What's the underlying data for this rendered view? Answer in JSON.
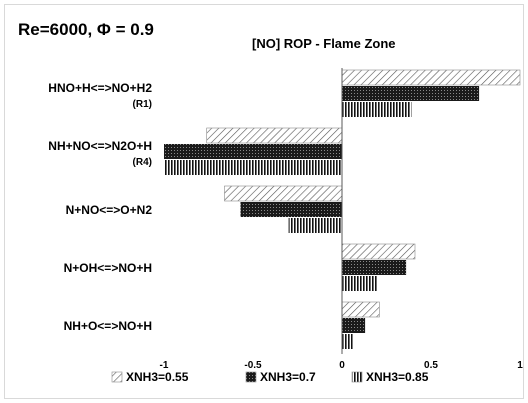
{
  "chart_data": {
    "type": "bar",
    "orientation": "horizontal",
    "corner_label": "Re=6000, Φ = 0.9",
    "title": "[NO] ROP - Flame Zone",
    "categories": [
      {
        "name": "HNO+H<=>NO+H2",
        "tag": "(R1)"
      },
      {
        "name": "NH+NO<=>N2O+H",
        "tag": "(R4)"
      },
      {
        "name": "N+NO<=>O+N2",
        "tag": ""
      },
      {
        "name": "N+OH<=>NO+H",
        "tag": ""
      },
      {
        "name": "NH+O<=>NO+H",
        "tag": ""
      }
    ],
    "series": [
      {
        "name": "XNH3=0.55",
        "pattern": "diagonal-hatch",
        "values": [
          1.0,
          -0.76,
          -0.66,
          0.41,
          0.21
        ]
      },
      {
        "name": "XNH3=0.7",
        "pattern": "dense-dark",
        "values": [
          0.77,
          -1.0,
          -0.57,
          0.36,
          0.13
        ]
      },
      {
        "name": "XNH3=0.85",
        "pattern": "vertical-stripes",
        "values": [
          0.39,
          -1.0,
          -0.3,
          0.2,
          0.06
        ]
      }
    ],
    "xlim": [
      -1,
      1
    ],
    "xticks": [
      "-1",
      "-0.5",
      "0",
      "0.5",
      "1"
    ],
    "grid": false,
    "legend_position": "bottom"
  }
}
